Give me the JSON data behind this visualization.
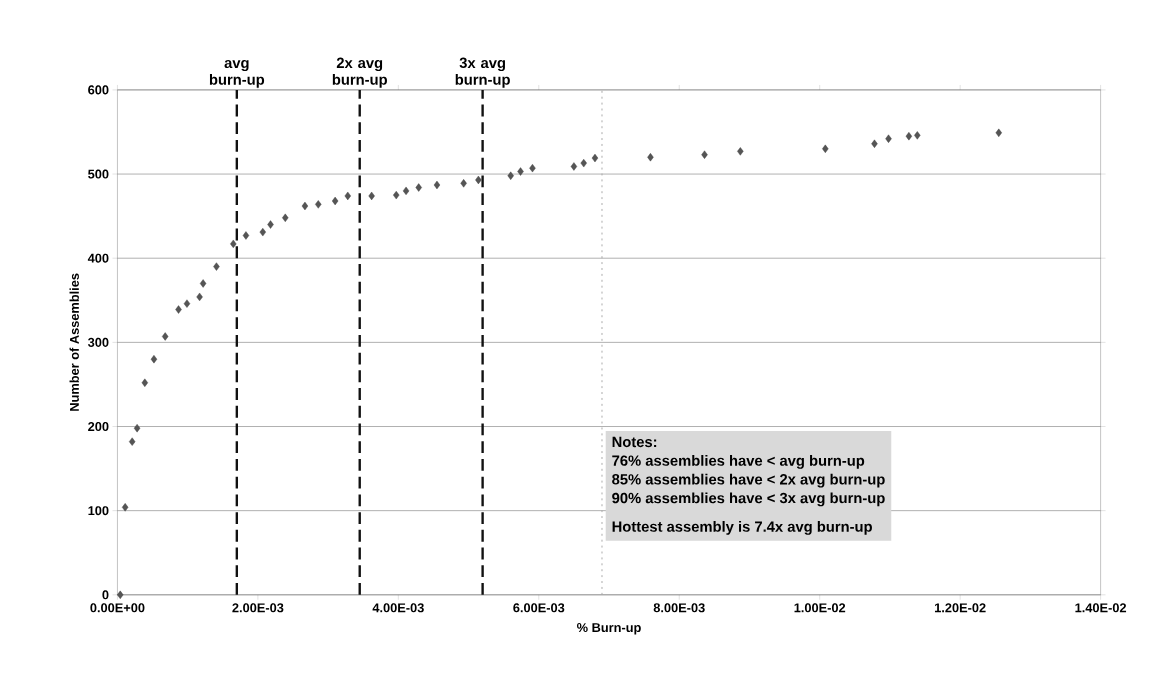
{
  "chart_data": {
    "type": "scatter",
    "xlabel": "% Burn-up",
    "ylabel": "Number of Assemblies",
    "x": [
      4e-05,
      0.00011,
      0.00021,
      0.00028,
      0.00039,
      0.00052,
      0.00068,
      0.00087,
      0.00099,
      0.00117,
      0.00122,
      0.00141,
      0.00165,
      0.00183,
      0.00207,
      0.00218,
      0.00239,
      0.00267,
      0.00286,
      0.0031,
      0.00328,
      0.00362,
      0.00397,
      0.00411,
      0.00429,
      0.00455,
      0.00493,
      0.00514,
      0.0056,
      0.00574,
      0.00591,
      0.0065,
      0.00664,
      0.0068,
      0.00759,
      0.00836,
      0.00887,
      0.01008,
      0.01078,
      0.01098,
      0.01127,
      0.01139,
      0.01255
    ],
    "values": [
      0,
      104,
      182,
      198,
      252,
      280,
      307,
      339,
      346,
      354,
      370,
      390,
      417,
      427,
      431,
      440,
      448,
      462,
      464,
      468,
      474,
      474,
      475,
      480,
      484,
      487,
      489,
      493,
      498,
      503,
      507,
      509,
      513,
      519,
      520,
      523,
      527,
      530,
      536,
      542,
      545,
      546,
      549
    ],
    "color": "#555555",
    "marker": "diamond",
    "grid": "y",
    "xlim": [
      0,
      0.014
    ],
    "ylim": [
      0,
      600
    ],
    "xticks": [
      {
        "value": 0,
        "label": "0.00E+00"
      },
      {
        "value": 0.002,
        "label": "2.00E-03"
      },
      {
        "value": 0.004,
        "label": "4.00E-03"
      },
      {
        "value": 0.006,
        "label": "6.00E-03"
      },
      {
        "value": 0.008,
        "label": "8.00E-03"
      },
      {
        "value": 0.01,
        "label": "1.00E-02"
      },
      {
        "value": 0.012,
        "label": "1.20E-02"
      },
      {
        "value": 0.014,
        "label": "1.40E-02"
      }
    ],
    "yticks": [
      0,
      100,
      200,
      300,
      400,
      500,
      600
    ],
    "ref_lines": [
      {
        "axis": "x",
        "value": 0.0017,
        "label": "avg burn-up",
        "color": "#111111",
        "line_style": "dashed"
      },
      {
        "axis": "x",
        "value": 0.00345,
        "label": "2x avg burn-up",
        "color": "#111111",
        "line_style": "dashed"
      },
      {
        "axis": "x",
        "value": 0.0052,
        "label": "3x avg burn-up",
        "color": "#111111",
        "line_style": "dashed"
      },
      {
        "axis": "x",
        "value": 0.0069,
        "color": "#aaaaaa",
        "line_style": "dotted"
      }
    ],
    "annotations": [
      "Notes:",
      "76% assemblies have < avg burn-up",
      "85% assemblies have < 2x avg burn-up",
      "90% assemblies have < 3x avg burn-up",
      "Hottest assembly is 7.4x avg burn-up"
    ]
  }
}
